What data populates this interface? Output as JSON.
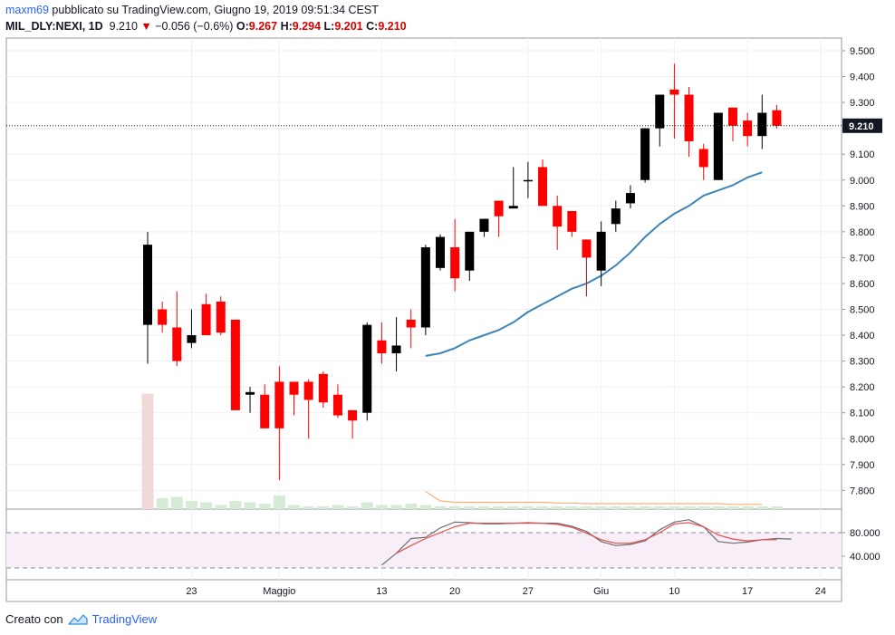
{
  "header": {
    "user": "maxm69",
    "published_text": "pubblicato su TradingView.com, Giugno 19, 2019 09:51:34 CEST",
    "symbol": "MIL_DLY:NEXI, 1D",
    "last": "9.210",
    "change": "−0.056 (−0.6%)",
    "o_label": "O:",
    "o_value": "9.267",
    "h_label": "H:",
    "h_value": "9.294",
    "l_label": "L:",
    "l_value": "9.201",
    "c_label": "C:",
    "c_value": "9.210"
  },
  "footer": {
    "created_with": "Creato con",
    "brand": "TradingView"
  },
  "colors": {
    "up": "#000000",
    "down": "#ff0000",
    "ma": "#3d85b8",
    "stoch_k": "#6e6e6e",
    "stoch_d": "#e84d4d",
    "volume": "#d6ebd6",
    "volume_first": "#f2d9d9",
    "rsi_band": "#f7eef7"
  },
  "chart_data": {
    "type": "candlestick",
    "price_axis": {
      "ylim": [
        7.7,
        9.6
      ],
      "ticks": [
        "9.500",
        "9.400",
        "9.300",
        "9.200",
        "9.100",
        "9.000",
        "8.900",
        "8.800",
        "8.700",
        "8.600",
        "8.500",
        "8.400",
        "8.300",
        "8.200",
        "8.100",
        "8.000",
        "7.900",
        "7.800"
      ],
      "last_price_label": "9.210",
      "last_price": 9.21
    },
    "x_axis": {
      "ticks": [
        {
          "label": "23",
          "bar": 3
        },
        {
          "label": "Maggio",
          "bar": 9
        },
        {
          "label": "13",
          "bar": 16
        },
        {
          "label": "20",
          "bar": 21
        },
        {
          "label": "27",
          "bar": 26
        },
        {
          "label": "Giu",
          "bar": 31
        },
        {
          "label": "10",
          "bar": 36
        },
        {
          "label": "17",
          "bar": 41
        },
        {
          "label": "24",
          "bar": 46
        }
      ]
    },
    "candles": [
      {
        "o": 8.44,
        "h": 8.8,
        "l": 8.29,
        "c": 8.75
      },
      {
        "o": 8.5,
        "h": 8.53,
        "l": 8.41,
        "c": 8.44
      },
      {
        "o": 8.43,
        "h": 8.57,
        "l": 8.28,
        "c": 8.3
      },
      {
        "o": 8.37,
        "h": 8.5,
        "l": 8.35,
        "c": 8.4
      },
      {
        "o": 8.52,
        "h": 8.56,
        "l": 8.4,
        "c": 8.4
      },
      {
        "o": 8.53,
        "h": 8.55,
        "l": 8.4,
        "c": 8.41
      },
      {
        "o": 8.46,
        "h": 8.46,
        "l": 8.11,
        "c": 8.11
      },
      {
        "o": 8.17,
        "h": 8.2,
        "l": 8.1,
        "c": 8.18
      },
      {
        "o": 8.17,
        "h": 8.21,
        "l": 8.04,
        "c": 8.04
      },
      {
        "o": 8.22,
        "h": 8.28,
        "l": 7.84,
        "c": 8.04
      },
      {
        "o": 8.22,
        "h": 8.22,
        "l": 8.09,
        "c": 8.17
      },
      {
        "o": 8.22,
        "h": 8.23,
        "l": 8.0,
        "c": 8.15
      },
      {
        "o": 8.25,
        "h": 8.26,
        "l": 8.12,
        "c": 8.14
      },
      {
        "o": 8.17,
        "h": 8.21,
        "l": 8.08,
        "c": 8.09
      },
      {
        "o": 8.11,
        "h": 8.11,
        "l": 8.0,
        "c": 8.07
      },
      {
        "o": 8.1,
        "h": 8.45,
        "l": 8.07,
        "c": 8.44
      },
      {
        "o": 8.38,
        "h": 8.45,
        "l": 8.29,
        "c": 8.33
      },
      {
        "o": 8.33,
        "h": 8.47,
        "l": 8.26,
        "c": 8.36
      },
      {
        "o": 8.46,
        "h": 8.5,
        "l": 8.35,
        "c": 8.43
      },
      {
        "o": 8.43,
        "h": 8.75,
        "l": 8.4,
        "c": 8.74
      },
      {
        "o": 8.66,
        "h": 8.79,
        "l": 8.65,
        "c": 8.78
      },
      {
        "o": 8.74,
        "h": 8.85,
        "l": 8.57,
        "c": 8.62
      },
      {
        "o": 8.65,
        "h": 8.8,
        "l": 8.61,
        "c": 8.8
      },
      {
        "o": 8.8,
        "h": 8.85,
        "l": 8.78,
        "c": 8.85
      },
      {
        "o": 8.92,
        "h": 8.92,
        "l": 8.78,
        "c": 8.86
      },
      {
        "o": 8.89,
        "h": 9.05,
        "l": 8.89,
        "c": 8.9
      },
      {
        "o": 9.0,
        "h": 9.07,
        "l": 8.93,
        "c": 9.0
      },
      {
        "o": 9.05,
        "h": 9.08,
        "l": 8.9,
        "c": 8.9
      },
      {
        "o": 8.9,
        "h": 8.94,
        "l": 8.73,
        "c": 8.82
      },
      {
        "o": 8.88,
        "h": 8.88,
        "l": 8.78,
        "c": 8.8
      },
      {
        "o": 8.77,
        "h": 8.77,
        "l": 8.55,
        "c": 8.7
      },
      {
        "o": 8.65,
        "h": 8.84,
        "l": 8.59,
        "c": 8.8
      },
      {
        "o": 8.83,
        "h": 8.92,
        "l": 8.8,
        "c": 8.89
      },
      {
        "o": 8.91,
        "h": 8.98,
        "l": 8.89,
        "c": 8.95
      },
      {
        "o": 9.0,
        "h": 9.2,
        "l": 8.99,
        "c": 9.2
      },
      {
        "o": 9.2,
        "h": 9.33,
        "l": 9.13,
        "c": 9.33
      },
      {
        "o": 9.35,
        "h": 9.45,
        "l": 9.16,
        "c": 9.33
      },
      {
        "o": 9.33,
        "h": 9.36,
        "l": 9.09,
        "c": 9.15
      },
      {
        "o": 9.12,
        "h": 9.14,
        "l": 9.0,
        "c": 9.05
      },
      {
        "o": 9.0,
        "h": 9.26,
        "l": 9.0,
        "c": 9.26
      },
      {
        "o": 9.28,
        "h": 9.28,
        "l": 9.15,
        "c": 9.21
      },
      {
        "o": 9.23,
        "h": 9.26,
        "l": 9.13,
        "c": 9.17
      },
      {
        "o": 9.17,
        "h": 9.33,
        "l": 9.12,
        "c": 9.26
      },
      {
        "o": 9.27,
        "h": 9.29,
        "l": 9.2,
        "c": 9.21
      }
    ],
    "moving_average": {
      "start_bar": 19,
      "values": [
        8.32,
        8.33,
        8.35,
        8.38,
        8.4,
        8.42,
        8.45,
        8.49,
        8.52,
        8.55,
        8.58,
        8.6,
        8.63,
        8.67,
        8.72,
        8.78,
        8.83,
        8.87,
        8.9,
        8.94,
        8.96,
        8.98,
        9.01,
        9.03
      ]
    },
    "volume": [
      0.85,
      0.08,
      0.09,
      0.06,
      0.05,
      0.03,
      0.06,
      0.05,
      0.04,
      0.1,
      0.03,
      0.02,
      0.02,
      0.03,
      0.02,
      0.05,
      0.03,
      0.03,
      0.04,
      0.03,
      0.02,
      0.02,
      0.02,
      0.02,
      0.02,
      0.02,
      0.02,
      0.02,
      0.02,
      0.02,
      0.02,
      0.02,
      0.02,
      0.02,
      0.02,
      0.02,
      0.02,
      0.02,
      0.02,
      0.02,
      0.02,
      0.02,
      0.02,
      0.02
    ],
    "volume_ma": {
      "start_bar": 19,
      "values": [
        0.13,
        0.06,
        0.05,
        0.05,
        0.05,
        0.05,
        0.05,
        0.05,
        0.05,
        0.045,
        0.045,
        0.04,
        0.04,
        0.04,
        0.04,
        0.04,
        0.04,
        0.04,
        0.04,
        0.04,
        0.04,
        0.035,
        0.035,
        0.035
      ]
    },
    "oscillator": {
      "ylim": [
        0,
        120
      ],
      "ticks": [
        "80.000",
        "40.000"
      ],
      "band": [
        20,
        80
      ],
      "k": {
        "start_bar": 16,
        "values": [
          25,
          45,
          70,
          72,
          88,
          98,
          97,
          95,
          95,
          96,
          97,
          96,
          96,
          91,
          82,
          65,
          58,
          60,
          66,
          85,
          98,
          102,
          90,
          65,
          62,
          64,
          68,
          70,
          69
        ]
      },
      "d": {
        "start_bar": 17,
        "values": [
          45,
          58,
          70,
          80,
          90,
          96,
          96,
          96,
          96,
          96,
          96,
          94,
          89,
          79,
          68,
          62,
          62,
          68,
          80,
          95,
          97,
          90,
          76,
          69,
          66,
          68,
          68
        ]
      }
    }
  }
}
